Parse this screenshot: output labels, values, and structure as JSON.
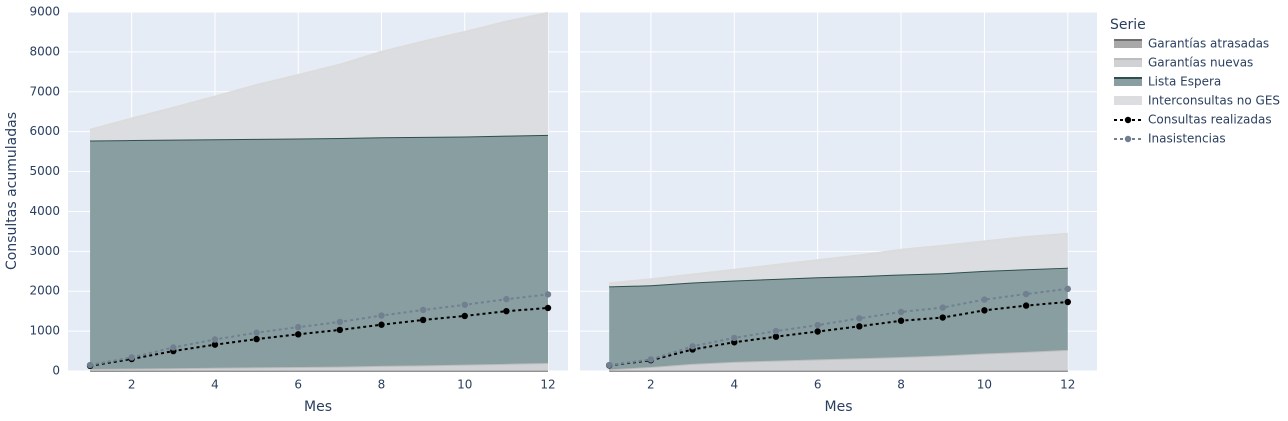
{
  "chart_data": {
    "type": "area",
    "ylabel": "Consultas acumuladas",
    "legend_title": "Serie",
    "legend": "right",
    "grid": true,
    "ylim": [
      0,
      9000
    ],
    "yticks": [
      0,
      1000,
      2000,
      3000,
      4000,
      5000,
      6000,
      7000,
      8000,
      9000
    ],
    "x": [
      1,
      2,
      3,
      4,
      5,
      6,
      7,
      8,
      9,
      10,
      11,
      12
    ],
    "panels": [
      {
        "xlabel": "Mes",
        "xlim": [
          0.47,
          12.48
        ],
        "xticks": [
          2,
          4,
          6,
          8,
          10,
          12
        ]
      },
      {
        "xlabel": "Mes",
        "xlim": [
          0.3,
          12.7
        ],
        "xticks": [
          2,
          4,
          6,
          8,
          10,
          12
        ]
      }
    ],
    "series": [
      {
        "name": "Garantías atrasadas",
        "kind": "area",
        "color": "#6e6e6e",
        "fillcolor": "#a9a9a9",
        "values": [
          [
            5,
            5,
            5,
            5,
            5,
            5,
            5,
            5,
            5,
            5,
            5,
            5
          ],
          [
            5,
            5,
            5,
            5,
            5,
            5,
            5,
            5,
            5,
            5,
            5,
            5
          ]
        ]
      },
      {
        "name": "Garantías nuevas",
        "kind": "area",
        "color": "#bdbdbd",
        "fillcolor": "#cfd1d4",
        "values": [
          [
            45,
            55,
            65,
            75,
            85,
            95,
            105,
            125,
            135,
            155,
            175,
            195
          ],
          [
            35,
            95,
            175,
            225,
            255,
            285,
            315,
            345,
            385,
            435,
            475,
            525
          ]
        ]
      },
      {
        "name": "Lista Espera",
        "kind": "area",
        "color": "#2f4f4f",
        "fillcolor": "#899ea1",
        "values": [
          [
            5730,
            5730,
            5730,
            5730,
            5730,
            5730,
            5730,
            5730,
            5730,
            5720,
            5720,
            5720
          ],
          [
            2080,
            2050,
            2040,
            2040,
            2050,
            2060,
            2060,
            2070,
            2060,
            2070,
            2070,
            2060
          ]
        ]
      },
      {
        "name": "Interconsultas no GES",
        "kind": "area",
        "color": "#dcdcdc",
        "fillcolor": "#dcdde0",
        "values": [
          [
            270,
            540,
            800,
            1070,
            1350,
            1590,
            1840,
            2140,
            2390,
            2620,
            2860,
            3060
          ],
          [
            80,
            150,
            200,
            270,
            350,
            430,
            520,
            620,
            690,
            740,
            810,
            850
          ]
        ]
      },
      {
        "name": "Consultas realizadas",
        "kind": "line",
        "color": "#000000",
        "values": [
          [
            130,
            300,
            500,
            660,
            800,
            920,
            1030,
            1160,
            1280,
            1380,
            1500,
            1580
          ],
          [
            140,
            270,
            540,
            720,
            860,
            990,
            1120,
            1260,
            1340,
            1520,
            1640,
            1730
          ]
        ]
      },
      {
        "name": "Inasistencias",
        "kind": "line",
        "color": "#708090",
        "values": [
          [
            150,
            340,
            590,
            790,
            960,
            1100,
            1230,
            1390,
            1530,
            1660,
            1800,
            1920
          ],
          [
            150,
            290,
            620,
            830,
            1000,
            1150,
            1320,
            1480,
            1590,
            1790,
            1930,
            2060
          ]
        ]
      }
    ]
  }
}
